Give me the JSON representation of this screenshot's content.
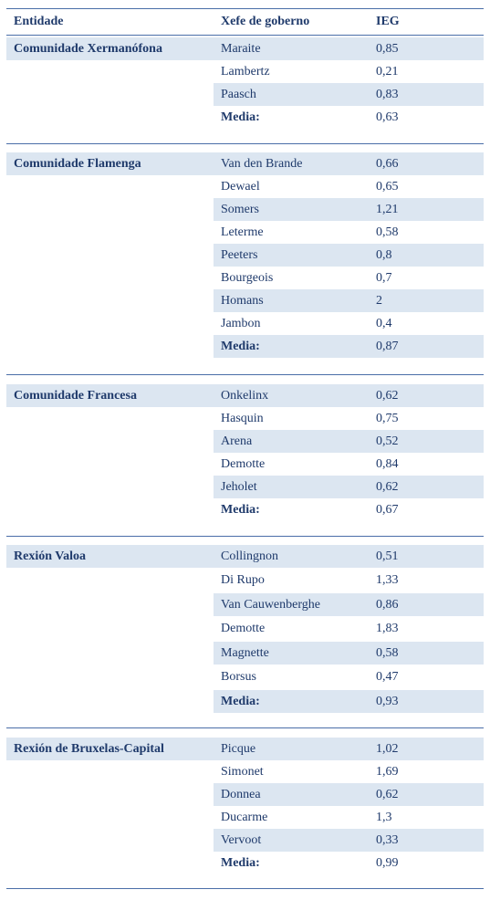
{
  "header": {
    "entity": "Entidade",
    "head": "Xefe de goberno",
    "ieg": "IEG"
  },
  "sections": [
    {
      "entity": "Comunidade Xermanófona",
      "rows": [
        {
          "name": "Maraite",
          "value": "0,85"
        },
        {
          "name": "Lambertz",
          "value": "0,21"
        },
        {
          "name": "Paasch",
          "value": "0,83"
        },
        {
          "name": "Media:",
          "value": "0,63"
        }
      ]
    },
    {
      "entity": "Comunidade Flamenga",
      "rows": [
        {
          "name": "Van den Brande",
          "value": "0,66"
        },
        {
          "name": "Dewael",
          "value": "0,65"
        },
        {
          "name": "Somers",
          "value": "1,21"
        },
        {
          "name": "Leterme",
          "value": "0,58"
        },
        {
          "name": "Peeters",
          "value": "0,8"
        },
        {
          "name": "Bourgeois",
          "value": "0,7"
        },
        {
          "name": "Homans",
          "value": "2"
        },
        {
          "name": "Jambon",
          "value": "0,4"
        },
        {
          "name": "Media:",
          "value": "0,87"
        }
      ]
    },
    {
      "entity": "Comunidade Francesa",
      "rows": [
        {
          "name": "Onkelinx",
          "value": "0,62"
        },
        {
          "name": "Hasquin",
          "value": "0,75"
        },
        {
          "name": "Arena",
          "value": "0,52"
        },
        {
          "name": "Demotte",
          "value": "0,84"
        },
        {
          "name": "Jeholet",
          "value": "0,62"
        },
        {
          "name": "Media:",
          "value": "0,67"
        }
      ]
    },
    {
      "entity": "Rexión Valoa",
      "rows": [
        {
          "name": "Collingnon",
          "value": "0,51"
        },
        {
          "name": "Di Rupo",
          "value": "1,33"
        },
        {
          "name": "Van Cauwenberghe",
          "value": "0,86"
        },
        {
          "name": "Demotte",
          "value": "1,83"
        },
        {
          "name": "Magnette",
          "value": "0,58"
        },
        {
          "name": "Borsus",
          "value": "0,47"
        },
        {
          "name": "Media:",
          "value": "0,93"
        }
      ]
    },
    {
      "entity": "Rexión de Bruxelas-Capital",
      "rows": [
        {
          "name": "Picque",
          "value": "1,02"
        },
        {
          "name": "Simonet",
          "value": "1,69"
        },
        {
          "name": "Donnea",
          "value": "0,62"
        },
        {
          "name": "Ducarme",
          "value": "1,3"
        },
        {
          "name": "Vervoot",
          "value": "0,33"
        },
        {
          "name": "Media:",
          "value": "0,99"
        }
      ]
    }
  ]
}
